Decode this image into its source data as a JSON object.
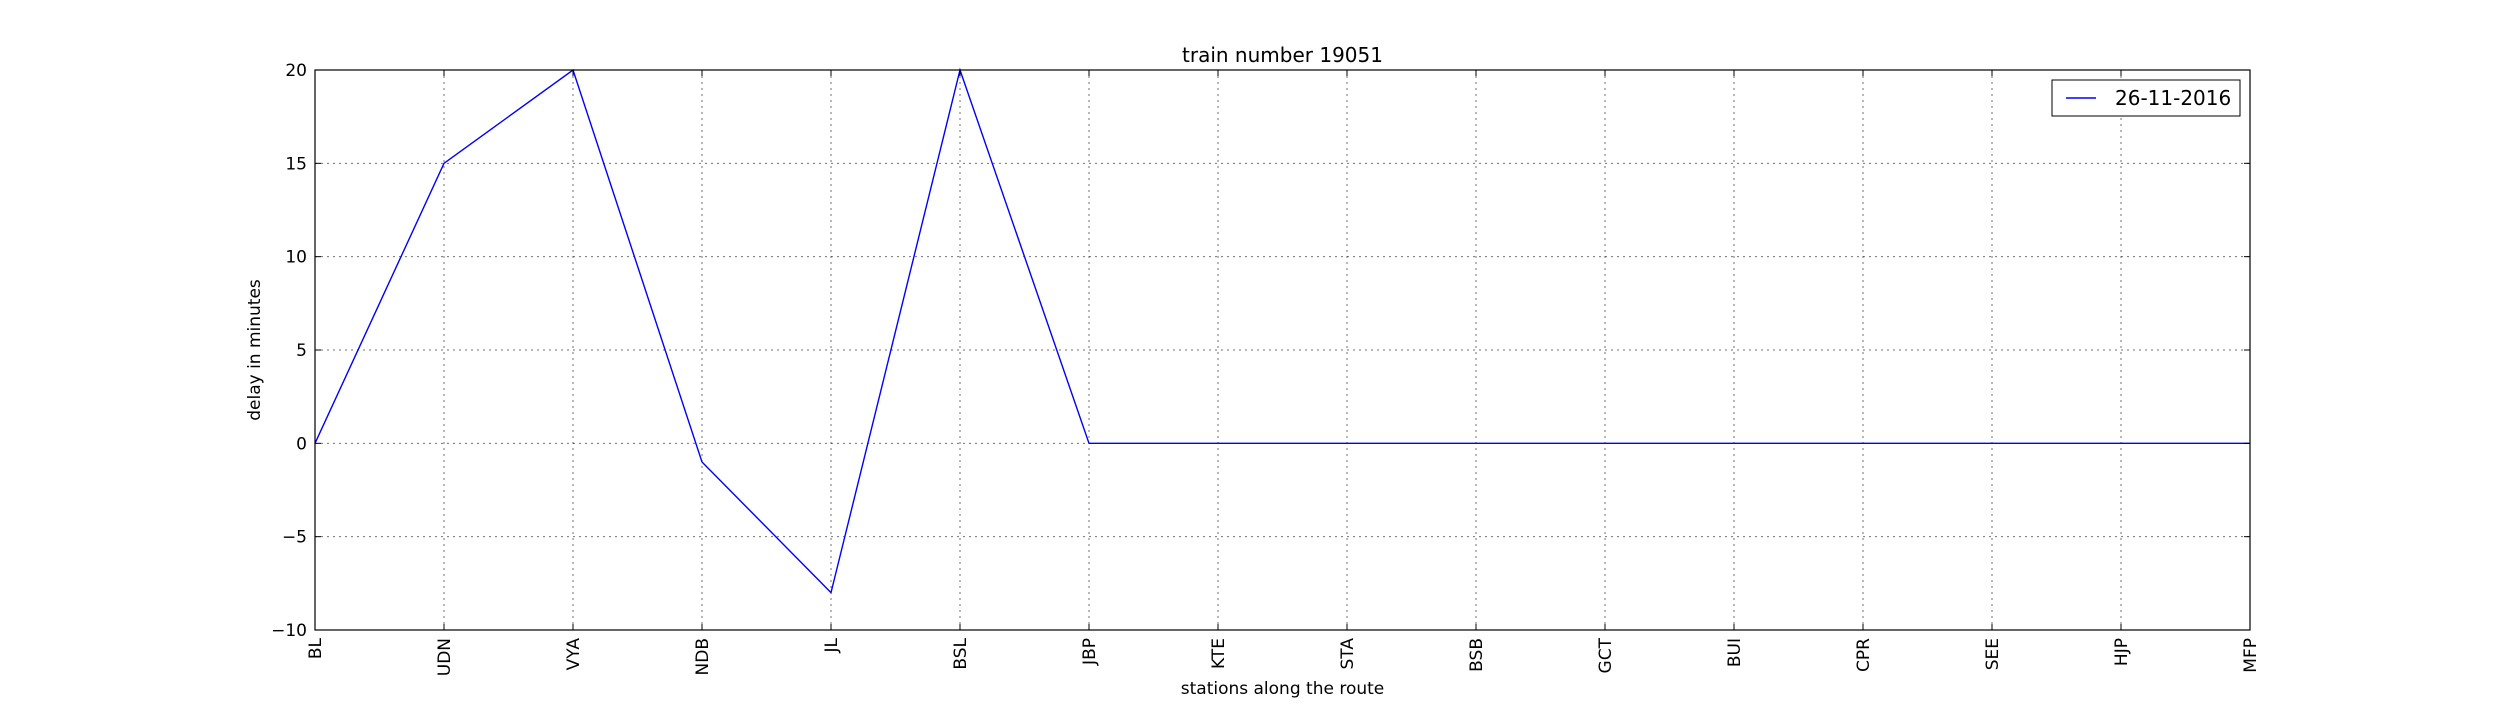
{
  "chart_data": {
    "type": "line",
    "title": "train number 19051",
    "xlabel": "stations along the route",
    "ylabel": "delay in minutes",
    "categories": [
      "BL",
      "UDN",
      "VYA",
      "NDB",
      "JL",
      "BSL",
      "JBP",
      "KTE",
      "STA",
      "BSB",
      "GCT",
      "BUI",
      "CPR",
      "SEE",
      "HJP",
      "MFP"
    ],
    "series": [
      {
        "name": "26-11-2016",
        "values": [
          0,
          15,
          20,
          -1,
          -8,
          20,
          0,
          0,
          0,
          0,
          0,
          0,
          0,
          0,
          0,
          0
        ],
        "color": "#0000ff"
      }
    ],
    "ylim": [
      -10,
      20
    ],
    "yticks": [
      -10,
      -5,
      0,
      5,
      10,
      15,
      20
    ],
    "ytick_labels": [
      "−10",
      "−5",
      "0",
      "5",
      "10",
      "15",
      "20"
    ],
    "grid": true,
    "legend_position": "top-right"
  }
}
